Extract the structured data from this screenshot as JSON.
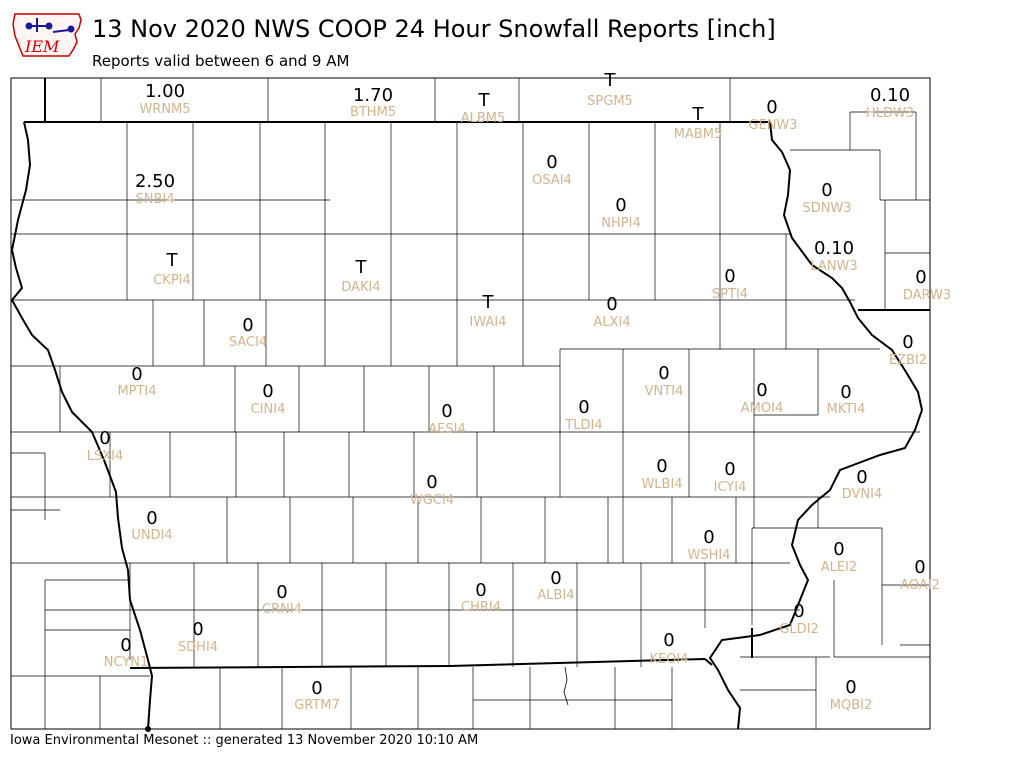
{
  "header": {
    "title": "13 Nov 2020 NWS COOP 24 Hour Snowfall Reports [inch]",
    "subtitle": "Reports valid between 6 and 9 AM"
  },
  "logo": {
    "text": "IEM",
    "colors": {
      "text": "#cc0000",
      "icon": "#1a1a99"
    }
  },
  "footer": {
    "text": "Iowa Environmental Mesonet :: generated 13 November 2020 10:10 AM"
  },
  "colors": {
    "value": "#000000",
    "station": "#d2b48c",
    "border": "#000000"
  },
  "reports": [
    {
      "station": "WRNM5",
      "value": "1.00"
    },
    {
      "station": "BTHM5",
      "value": "1.70"
    },
    {
      "station": "ALBM5",
      "value": "T"
    },
    {
      "station": "SPGM5",
      "value": "T"
    },
    {
      "station": "MABM5",
      "value": "T"
    },
    {
      "station": "GENW3",
      "value": "0"
    },
    {
      "station": "HLDW3",
      "value": "0.10"
    },
    {
      "station": "SNBI4",
      "value": "2.50"
    },
    {
      "station": "OSAI4",
      "value": "0"
    },
    {
      "station": "NHPI4",
      "value": "0"
    },
    {
      "station": "SDNW3",
      "value": "0"
    },
    {
      "station": "LANW3",
      "value": "0.10"
    },
    {
      "station": "CKPI4",
      "value": "T"
    },
    {
      "station": "DAKI4",
      "value": "T"
    },
    {
      "station": "SPTI4",
      "value": "0"
    },
    {
      "station": "DARW3",
      "value": "0"
    },
    {
      "station": "IWAI4",
      "value": "T"
    },
    {
      "station": "ALXI4",
      "value": "0"
    },
    {
      "station": "SACI4",
      "value": "0"
    },
    {
      "station": "EZBI2",
      "value": "0"
    },
    {
      "station": "MPTI4",
      "value": "0"
    },
    {
      "station": "VNTI4",
      "value": "0"
    },
    {
      "station": "CINI4",
      "value": "0"
    },
    {
      "station": "AMOI4",
      "value": "0"
    },
    {
      "station": "MKTI4",
      "value": "0"
    },
    {
      "station": "AESI4",
      "value": "0"
    },
    {
      "station": "TLDI4",
      "value": "0"
    },
    {
      "station": "LSXI4",
      "value": "0"
    },
    {
      "station": "WLBI4",
      "value": "0"
    },
    {
      "station": "ICYI4",
      "value": "0"
    },
    {
      "station": "WGCI4",
      "value": "0"
    },
    {
      "station": "DVNI4",
      "value": "0"
    },
    {
      "station": "UNDI4",
      "value": "0"
    },
    {
      "station": "WSHI4",
      "value": "0"
    },
    {
      "station": "ALEI2",
      "value": "0"
    },
    {
      "station": "AOAI2",
      "value": "0"
    },
    {
      "station": "CRNI4",
      "value": "0"
    },
    {
      "station": "CHRI4",
      "value": "0"
    },
    {
      "station": "ALBI4",
      "value": "0"
    },
    {
      "station": "SDHI4",
      "value": "0"
    },
    {
      "station": "GLDI2",
      "value": "0"
    },
    {
      "station": "NCYN1",
      "value": "0"
    },
    {
      "station": "KEOI4",
      "value": "0"
    },
    {
      "station": "GRTM7",
      "value": "0"
    },
    {
      "station": "MQBI2",
      "value": "0"
    }
  ]
}
